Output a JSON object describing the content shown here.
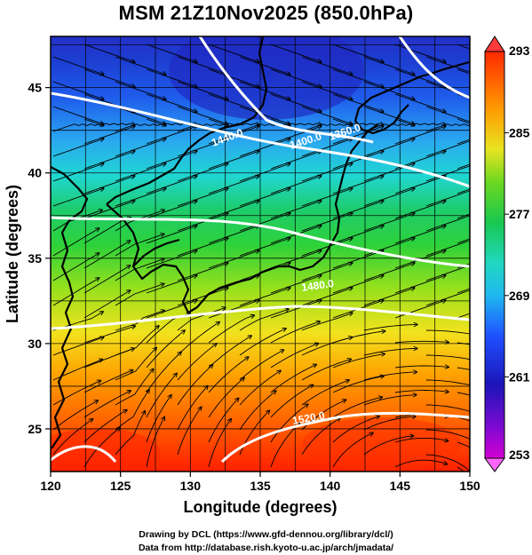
{
  "title": "MSM 21Z10Nov2025 (850.0hPa)",
  "x_axis": {
    "label": "Longitude (degrees)",
    "range": [
      120,
      150
    ],
    "ticks": [
      120,
      125,
      130,
      135,
      140,
      145,
      150
    ]
  },
  "y_axis": {
    "label": "Latitude  (degrees)",
    "range": [
      22.5,
      48
    ],
    "ticks": [
      25,
      30,
      35,
      40,
      45
    ]
  },
  "colorbar": {
    "range": [
      253,
      293
    ],
    "ticks": [
      253,
      261,
      269,
      277,
      285,
      293
    ],
    "extend": "both",
    "colors": [
      "#cc00cc",
      "#1c1cb4",
      "#1f5bff",
      "#20d2e6",
      "#17c85a",
      "#8fe020",
      "#f0e020",
      "#ff8c00",
      "#ff2a00"
    ]
  },
  "contour_labels": [
    "1400.0",
    "1360.0",
    "1440.0",
    "1520.0",
    "1480.0"
  ],
  "credits": [
    "Drawing by DCL (https://www.gfd-dennou.org/library/dcl/)",
    "Data from http://database.rish.kyoto-u.ac.jp/arch/jmadata/"
  ]
}
